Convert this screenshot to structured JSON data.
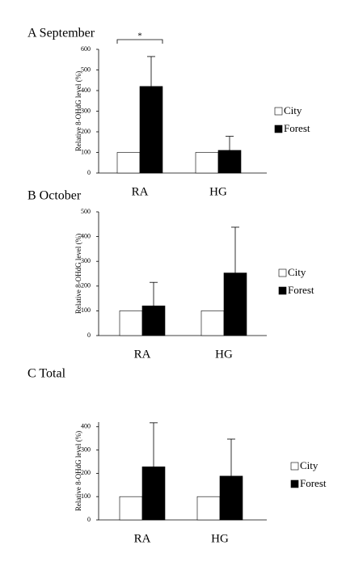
{
  "chart_data": [
    {
      "type": "bar",
      "title": "A September",
      "y_label": "Relative 8-OHdG level (%)",
      "categories": [
        "RA",
        "HG"
      ],
      "series": [
        {
          "name": "City",
          "color": "#ffffff",
          "values": [
            100,
            100
          ]
        },
        {
          "name": "Forest",
          "color": "#000000",
          "values": [
            420,
            110
          ],
          "errors": [
            145,
            68
          ]
        }
      ],
      "ylim": [
        0,
        600
      ],
      "yticks": [
        0,
        100,
        200,
        300,
        400,
        500,
        600
      ],
      "annotation": "*"
    },
    {
      "type": "bar",
      "title": "B October",
      "y_label": "Relative 8-OHdG level (%)",
      "categories": [
        "RA",
        "HG"
      ],
      "series": [
        {
          "name": "City",
          "color": "#ffffff",
          "values": [
            100,
            100
          ]
        },
        {
          "name": "Forest",
          "color": "#000000",
          "values": [
            120,
            253
          ],
          "errors": [
            95,
            185
          ]
        }
      ],
      "ylim": [
        0,
        500
      ],
      "yticks": [
        0,
        100,
        200,
        300,
        400,
        500
      ]
    },
    {
      "type": "bar",
      "title": "C Total",
      "y_label": "Relative 8-OHdG level (%)",
      "categories": [
        "RA",
        "HG"
      ],
      "series": [
        {
          "name": "City",
          "color": "#ffffff",
          "values": [
            100,
            100
          ]
        },
        {
          "name": "Forest",
          "color": "#000000",
          "values": [
            228,
            188
          ],
          "errors": [
            189,
            159
          ]
        }
      ],
      "ylim": [
        0,
        420
      ],
      "yticks": [
        0,
        100,
        200,
        300,
        400
      ]
    }
  ]
}
